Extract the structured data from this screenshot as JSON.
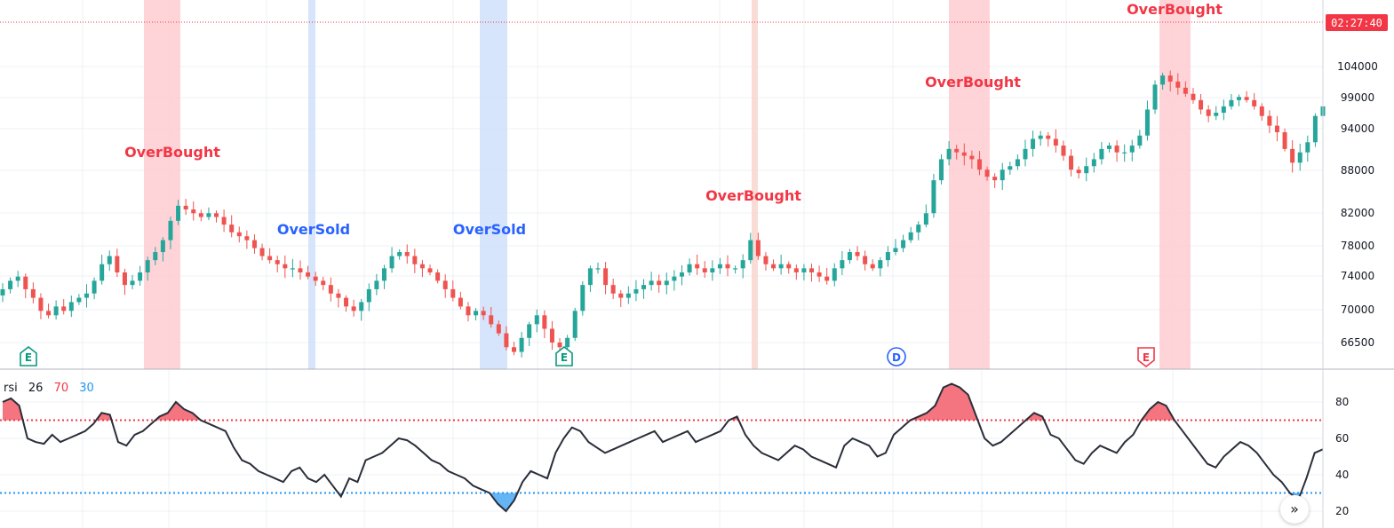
{
  "countdown": "02:27:40",
  "scroll_icon_glyph": "»",
  "colors": {
    "up": "#26a69a",
    "down": "#ef5350",
    "overbought": "#f23645",
    "oversold": "#2962ff",
    "rsi_line": "#2a2e39",
    "rsi_ob_fill": "#f4747f",
    "rsi_os_fill": "#64b5f6",
    "ob_band": "#ffcdd2",
    "os_band": "#cfdffc",
    "grid": "#eef1f5",
    "price_line": "#f23645",
    "earnings": "#089981",
    "dividend": "#2962ff"
  },
  "rsi": {
    "name": "rsi",
    "length": "26",
    "upper": "70",
    "lower": "30"
  },
  "events": [
    {
      "letter": "E",
      "type": "earnings"
    },
    {
      "letter": "E",
      "type": "earnings"
    },
    {
      "letter": "D",
      "type": "dividend"
    },
    {
      "letter": "E",
      "type": "earnings-red"
    }
  ],
  "chart_data": {
    "type": "candlestick",
    "price_axis": {
      "ticks": [
        "104000",
        "99000",
        "94000",
        "88000",
        "82000",
        "78000",
        "74000",
        "70000",
        "66500"
      ],
      "scale": "log",
      "current_price_line": 109500
    },
    "candles_anchor_closes": [
      72500,
      73500,
      74000,
      72500,
      71500,
      70000,
      69500,
      70500,
      70000,
      71000,
      71500,
      72000,
      73500,
      75500,
      76500,
      74500,
      73000,
      73500,
      74500,
      76000,
      77000,
      78500,
      81000,
      83000,
      82500,
      82000,
      81500,
      82000,
      81500,
      80500,
      79500,
      79000,
      78500,
      77500,
      76500,
      76000,
      75500,
      75000,
      75000,
      74500,
      74000,
      73500,
      73000,
      72000,
      71500,
      70500,
      70000,
      71000,
      72500,
      73500,
      75000,
      76500,
      77000,
      76500,
      75500,
      75000,
      74500,
      73500,
      72500,
      71500,
      70500,
      69500,
      70000,
      69500,
      68500,
      67500,
      66000,
      65500,
      67000,
      68500,
      69500,
      68000,
      66500,
      66000,
      67000,
      70000,
      73000,
      75000,
      75000,
      73000,
      72000,
      71500,
      72000,
      72500,
      73000,
      73500,
      73000,
      73500,
      74000,
      74500,
      75500,
      75000,
      74500,
      75000,
      75500,
      75000,
      75000,
      76000,
      78500,
      76500,
      75500,
      75000,
      75500,
      75000,
      74500,
      75000,
      74500,
      74000,
      73500,
      75000,
      76000,
      77000,
      76500,
      75500,
      75000,
      76000,
      77000,
      77500,
      78500,
      79500,
      80500,
      82000,
      86500,
      89500,
      91000,
      90500,
      90000,
      89500,
      88000,
      87000,
      86500,
      88000,
      88500,
      89500,
      91000,
      92500,
      93000,
      92500,
      91500,
      90000,
      88000,
      87500,
      88500,
      89500,
      91000,
      91500,
      90500,
      90500,
      91500,
      93000,
      97000,
      101000,
      102500,
      101500,
      100500,
      99500,
      98500,
      97000,
      96000,
      96500,
      97500,
      98500,
      99000,
      98500,
      97500,
      96000,
      94500,
      93500,
      91000,
      89000,
      90500,
      92000,
      96000,
      97500
    ],
    "rsi_anchor_values": [
      80,
      82,
      78,
      60,
      58,
      57,
      62,
      58,
      60,
      62,
      64,
      68,
      74,
      73,
      58,
      56,
      62,
      64,
      68,
      72,
      74,
      80,
      76,
      74,
      70,
      68,
      66,
      64,
      55,
      48,
      46,
      42,
      40,
      38,
      36,
      42,
      44,
      38,
      36,
      40,
      34,
      28,
      38,
      36,
      48,
      50,
      52,
      56,
      60,
      59,
      56,
      52,
      48,
      46,
      42,
      40,
      38,
      34,
      32,
      30,
      24,
      20,
      26,
      36,
      42,
      40,
      38,
      52,
      60,
      66,
      64,
      58,
      55,
      52,
      54,
      56,
      58,
      60,
      62,
      64,
      58,
      60,
      62,
      64,
      58,
      60,
      62,
      64,
      70,
      72,
      62,
      56,
      52,
      50,
      48,
      52,
      56,
      54,
      50,
      48,
      46,
      44,
      56,
      60,
      58,
      56,
      50,
      52,
      62,
      66,
      70,
      72,
      74,
      78,
      88,
      90,
      88,
      84,
      72,
      60,
      56,
      58,
      62,
      66,
      70,
      74,
      72,
      62,
      60,
      54,
      48,
      46,
      52,
      56,
      54,
      52,
      58,
      62,
      70,
      76,
      80,
      78,
      70,
      64,
      58,
      52,
      46,
      44,
      50,
      54,
      58,
      56,
      52,
      46,
      40,
      36,
      30,
      26,
      38,
      52,
      54
    ],
    "annotations": [
      {
        "text": "OverBought",
        "kind": "overbought"
      },
      {
        "text": "OverSold",
        "kind": "oversold"
      },
      {
        "text": "OverSold",
        "kind": "oversold"
      },
      {
        "text": "OverBought",
        "kind": "overbought"
      },
      {
        "text": "OverBought",
        "kind": "overbought"
      },
      {
        "text": "OverBought",
        "kind": "overbought"
      }
    ],
    "rsi_axis": {
      "ticks": [
        "80",
        "60",
        "40",
        "20"
      ],
      "ylim": [
        15,
        95
      ],
      "overbought_level": 70,
      "oversold_level": 30
    }
  }
}
